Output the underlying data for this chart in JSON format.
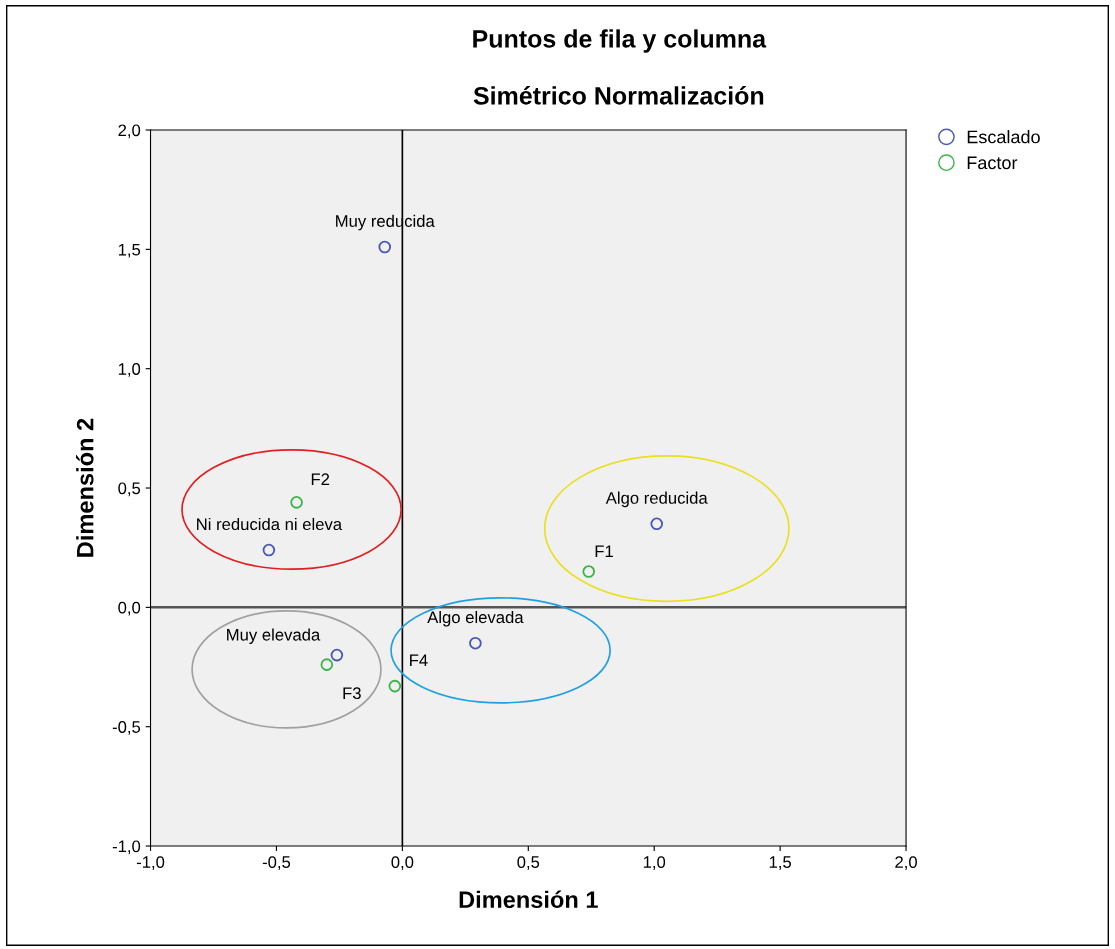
{
  "chart_data": {
    "type": "scatter",
    "title": "Puntos de fila y columna",
    "subtitle": "Simétrico Normalización",
    "xlabel": "Dimensión 1",
    "ylabel": "Dimensión 2",
    "series": [
      {
        "name": "Escalado",
        "color": "#4a56b8",
        "x": [
          -0.07,
          -0.53,
          1.01,
          0.29,
          -0.26
        ],
        "values": [
          1.51,
          0.24,
          0.35,
          -0.15,
          -0.2
        ]
      },
      {
        "name": "Factor",
        "color": "#3cb44a",
        "x": [
          -0.42,
          0.74,
          -0.3,
          -0.03
        ],
        "values": [
          0.44,
          0.15,
          -0.24,
          -0.33
        ]
      }
    ],
    "annotations": [
      {
        "text": "Muy reducida",
        "x": -0.07,
        "y": 1.51
      },
      {
        "text": "Ni reducida ni eleva",
        "x": -0.53,
        "y": 0.24
      },
      {
        "text": "Algo reducida",
        "x": 1.01,
        "y": 0.35
      },
      {
        "text": "Algo elevada",
        "x": 0.29,
        "y": -0.15
      },
      {
        "text": "Muy elevada",
        "x": -0.26,
        "y": -0.2
      },
      {
        "text": "F2",
        "x": -0.42,
        "y": 0.44
      },
      {
        "text": "F1",
        "x": 0.74,
        "y": 0.15
      },
      {
        "text": "F3",
        "x": -0.3,
        "y": -0.24
      },
      {
        "text": "F4",
        "x": -0.03,
        "y": -0.33
      }
    ],
    "xlim": [
      -1.0,
      2.0
    ],
    "ylim": [
      -1.0,
      2.0
    ],
    "xticks": [
      {
        "value": -1.0,
        "label": "-1,0"
      },
      {
        "value": -0.5,
        "label": "-0,5"
      },
      {
        "value": 0.0,
        "label": "0,0"
      },
      {
        "value": 0.5,
        "label": "0,5"
      },
      {
        "value": 1.0,
        "label": "1,0"
      },
      {
        "value": 1.5,
        "label": "1,5"
      },
      {
        "value": 2.0,
        "label": "2,0"
      }
    ],
    "yticks": [
      {
        "value": -1.0,
        "label": "-1,0"
      },
      {
        "value": -0.5,
        "label": "-0,5"
      },
      {
        "value": 0.0,
        "label": "0,0"
      },
      {
        "value": 0.5,
        "label": "0,5"
      },
      {
        "value": 1.0,
        "label": "1,0"
      },
      {
        "value": 1.5,
        "label": "1,5"
      },
      {
        "value": 2.0,
        "label": "2,0"
      }
    ],
    "ref_lines": [
      {
        "axis": "x",
        "value": 0.0,
        "color": "#000000"
      },
      {
        "axis": "y",
        "value": 0.0,
        "color": "#555555"
      }
    ],
    "marker": "circle",
    "grid": false,
    "legend": "top right"
  }
}
